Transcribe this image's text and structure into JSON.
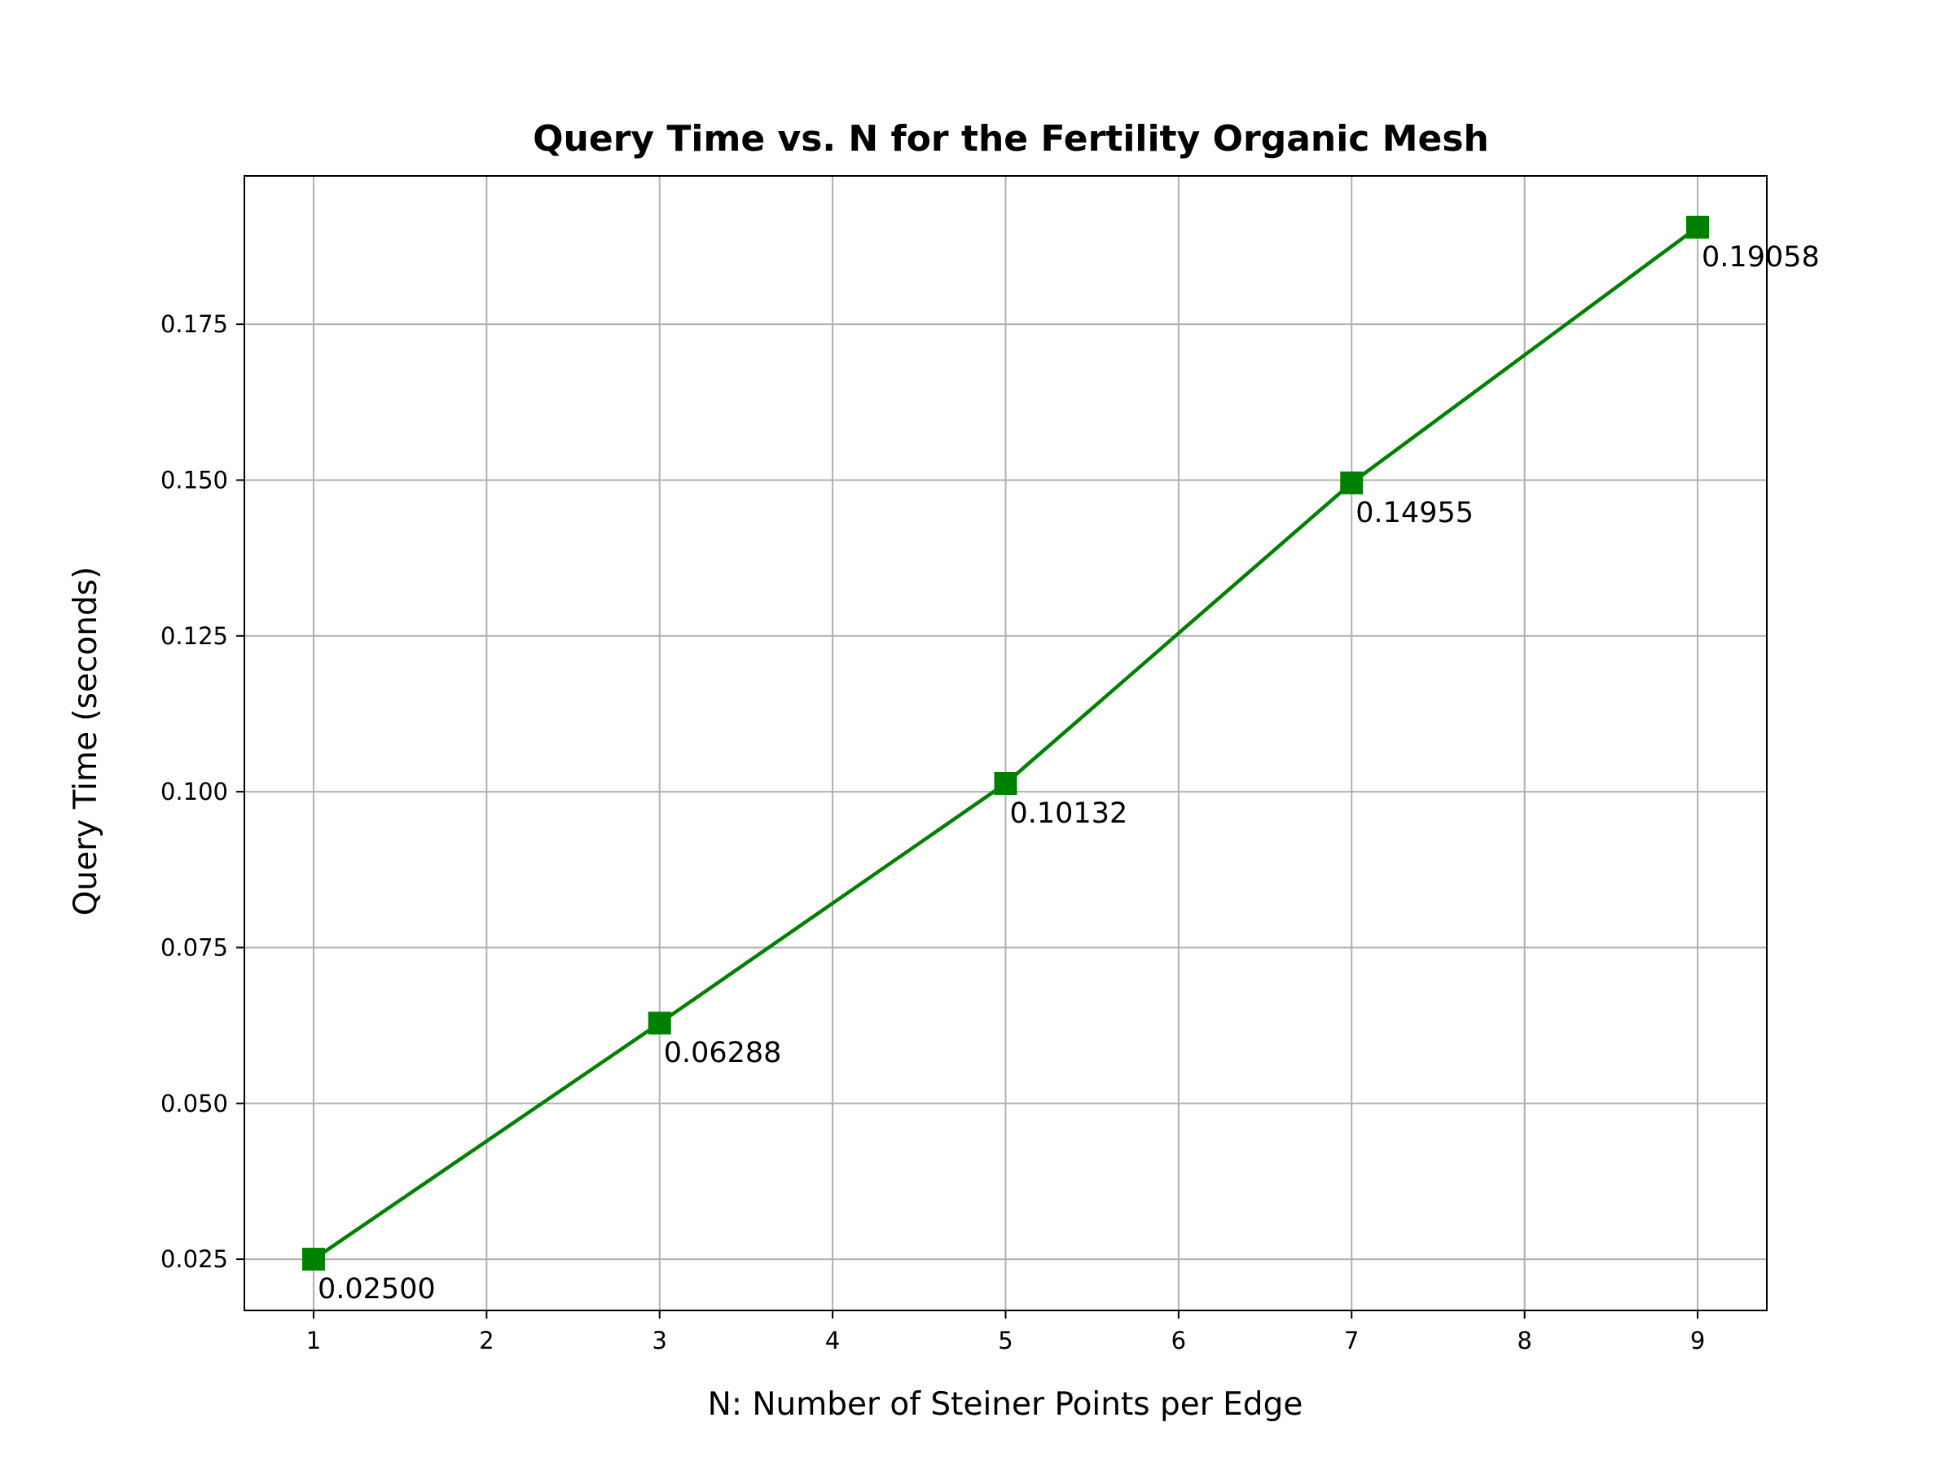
{
  "chart_data": {
    "type": "line",
    "title": "Query Time vs. N for the Fertility Organic Mesh",
    "xlabel": "N: Number of Steiner Points per Edge",
    "ylabel": "Query Time (seconds)",
    "xlim": [
      0.6,
      9.4
    ],
    "ylim": [
      0.01678,
      0.1988
    ],
    "xticks": [
      1,
      2,
      3,
      4,
      5,
      6,
      7,
      8,
      9
    ],
    "yticks": [
      0.025,
      0.05,
      0.075,
      0.1,
      0.125,
      0.15,
      0.175
    ],
    "ytick_labels": [
      "0.025",
      "0.050",
      "0.075",
      "0.100",
      "0.125",
      "0.150",
      "0.175"
    ],
    "grid": true,
    "series": [
      {
        "color": "#008000",
        "marker": "square",
        "x": [
          1,
          3,
          5,
          7,
          9
        ],
        "y": [
          0.025,
          0.06288,
          0.10132,
          0.14955,
          0.19058
        ],
        "labels": [
          "0.02500",
          "0.06288",
          "0.10132",
          "0.14955",
          "0.19058"
        ]
      }
    ]
  }
}
